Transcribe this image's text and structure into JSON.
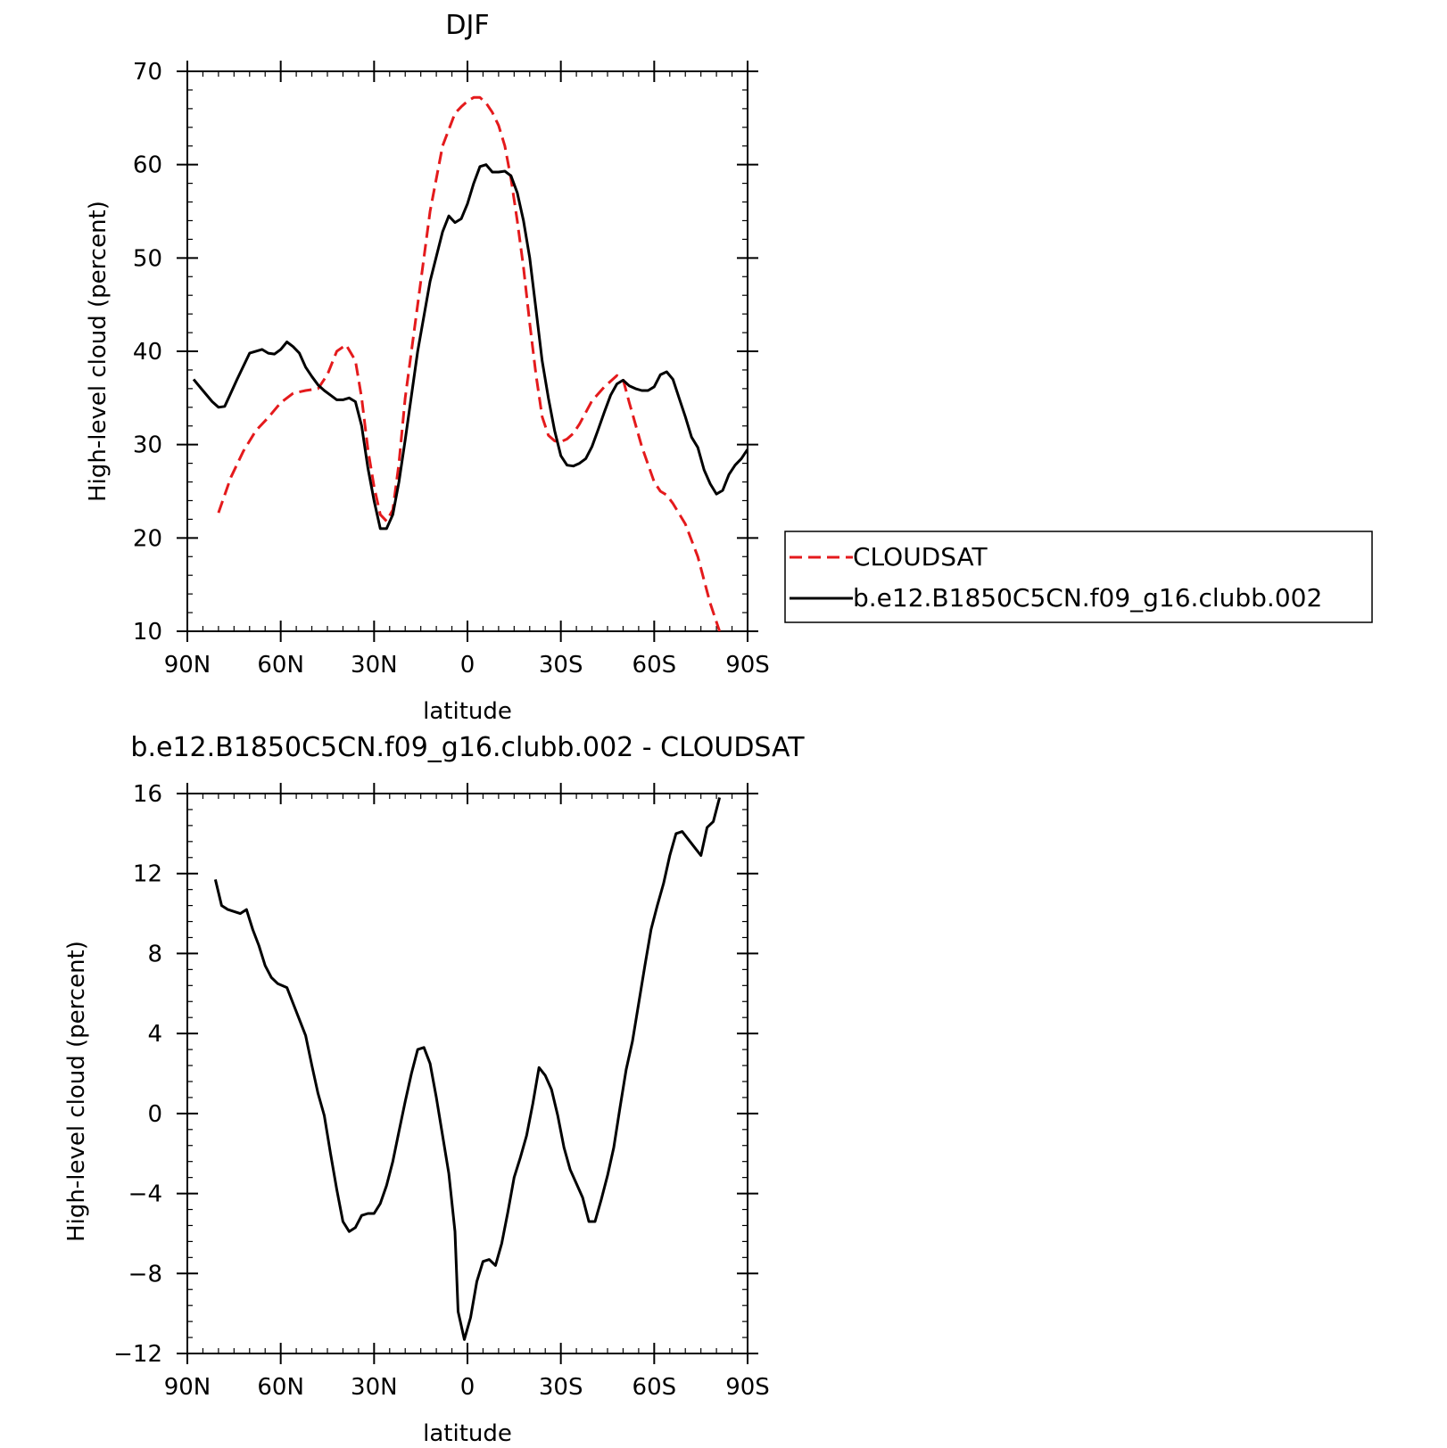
{
  "chart_data": [
    {
      "type": "line",
      "title": "DJF",
      "xlabel": "latitude",
      "ylabel": "High-level cloud (percent)",
      "xlim": [
        -90,
        90
      ],
      "ylim": [
        10,
        70
      ],
      "x_ticks": [
        -90,
        -60,
        -30,
        0,
        30,
        60,
        90
      ],
      "x_tick_labels": [
        "90N",
        "60N",
        "30N",
        "0",
        "30S",
        "60S",
        "90S"
      ],
      "y_ticks": [
        10,
        20,
        30,
        40,
        50,
        60,
        70
      ],
      "y_tick_labels": [
        "10",
        "20",
        "30",
        "40",
        "50",
        "60",
        "70"
      ],
      "legend": {
        "position": "right",
        "entries": [
          {
            "name": "CLOUDSAT",
            "color": "#e41a1c",
            "dash": true
          },
          {
            "name": "b.e12.B1850C5CN.f09_g16.clubb.002",
            "color": "#000000",
            "dash": false
          }
        ]
      },
      "series": [
        {
          "name": "CLOUDSAT",
          "color": "#e41a1c",
          "dashed": true,
          "x": [
            -80,
            -76,
            -72,
            -68,
            -64,
            -60,
            -56,
            -52,
            -48,
            -45,
            -42,
            -39,
            -36,
            -34,
            -32,
            -30,
            -28,
            -26,
            -24,
            -22,
            -20,
            -16,
            -12,
            -8,
            -4,
            -2,
            0,
            2,
            4,
            6,
            8,
            10,
            12,
            14,
            16,
            18,
            20,
            22,
            24,
            26,
            28,
            30,
            32,
            34,
            36,
            40,
            44,
            48,
            50,
            52,
            56,
            60,
            62,
            64,
            66,
            70,
            74,
            78,
            81
          ],
          "y": [
            22.7,
            26.5,
            29.3,
            31.5,
            32.9,
            34.5,
            35.5,
            35.8,
            36.0,
            37.5,
            40.0,
            40.7,
            39.0,
            35.0,
            29.5,
            25.5,
            22.5,
            21.8,
            23.0,
            28.0,
            35.0,
            45.0,
            55.0,
            62.0,
            65.5,
            66.2,
            66.8,
            67.2,
            67.2,
            66.6,
            65.6,
            64.2,
            62.0,
            58.5,
            54.0,
            49.0,
            43.0,
            37.5,
            33.0,
            31.0,
            30.4,
            30.3,
            30.6,
            31.2,
            32.2,
            34.7,
            36.2,
            37.4,
            37.0,
            34.5,
            29.8,
            26.0,
            25.0,
            24.6,
            23.7,
            21.5,
            18.0,
            13.0,
            10.0
          ]
        },
        {
          "name": "b.e12.B1850C5CN.f09_g16.clubb.002",
          "color": "#000000",
          "dashed": false,
          "x": [
            -88,
            -85,
            -82,
            -80,
            -78,
            -74,
            -70,
            -66,
            -64,
            -62,
            -60,
            -58,
            -56,
            -54,
            -52,
            -50,
            -48,
            -46,
            -44,
            -42,
            -40,
            -38,
            -36,
            -34,
            -32,
            -30,
            -28,
            -26,
            -24,
            -22,
            -20,
            -16,
            -12,
            -8,
            -6,
            -4,
            -2,
            0,
            2,
            4,
            6,
            8,
            10,
            12,
            14,
            16,
            18,
            20,
            22,
            24,
            26,
            28,
            30,
            32,
            34,
            36,
            38,
            40,
            42,
            44,
            46,
            48,
            50,
            52,
            54,
            56,
            58,
            60,
            62,
            64,
            66,
            68,
            70,
            72,
            74,
            76,
            78,
            80,
            82,
            84,
            86,
            88,
            90
          ],
          "y": [
            37.0,
            35.8,
            34.6,
            34.0,
            34.1,
            37.0,
            39.8,
            40.2,
            39.8,
            39.7,
            40.2,
            41.0,
            40.5,
            39.8,
            38.3,
            37.3,
            36.4,
            35.8,
            35.3,
            34.8,
            34.8,
            35.0,
            34.6,
            32.0,
            27.5,
            24.0,
            21.0,
            21.0,
            22.5,
            26.0,
            30.5,
            40.0,
            47.5,
            52.8,
            54.5,
            53.8,
            54.2,
            55.8,
            58.0,
            59.8,
            60.0,
            59.2,
            59.2,
            59.3,
            58.8,
            57.0,
            54.0,
            50.0,
            44.5,
            39.0,
            35.0,
            31.5,
            28.8,
            27.8,
            27.7,
            28.0,
            28.5,
            29.8,
            31.6,
            33.5,
            35.3,
            36.5,
            36.9,
            36.3,
            36.0,
            35.8,
            35.8,
            36.2,
            37.5,
            37.8,
            37.0,
            35.0,
            33.0,
            30.8,
            29.7,
            27.3,
            25.8,
            24.7,
            25.1,
            26.8,
            27.8,
            28.5,
            29.5
          ]
        }
      ]
    },
    {
      "type": "line",
      "title": "b.e12.B1850C5CN.f09_g16.clubb.002 - CLOUDSAT",
      "xlabel": "latitude",
      "ylabel": "High-level cloud (percent)",
      "xlim": [
        -90,
        90
      ],
      "ylim": [
        -12,
        16
      ],
      "x_ticks": [
        -90,
        -60,
        -30,
        0,
        30,
        60,
        90
      ],
      "x_tick_labels": [
        "90N",
        "60N",
        "30N",
        "0",
        "30S",
        "60S",
        "90S"
      ],
      "y_ticks": [
        -12,
        -8,
        -4,
        0,
        4,
        8,
        12,
        16
      ],
      "y_tick_labels": [
        "−12",
        "−8",
        "−4",
        "0",
        "4",
        "8",
        "12",
        "16"
      ],
      "series": [
        {
          "name": "b.e12.B1850C5CN.f09_g16.clubb.002 - CLOUDSAT",
          "color": "#000000",
          "dashed": false,
          "x": [
            -81,
            -79,
            -77,
            -75,
            -73,
            -71,
            -69,
            -67,
            -65,
            -63,
            -61,
            -58,
            -56,
            -54,
            -52,
            -50,
            -48,
            -46,
            -44,
            -42,
            -40,
            -38,
            -36,
            -34,
            -32,
            -30,
            -28,
            -26,
            -24,
            -22,
            -20,
            -18,
            -16,
            -14,
            -12,
            -10,
            -8,
            -6,
            -4,
            -3,
            -1,
            1,
            3,
            5,
            7,
            9,
            11,
            13,
            15,
            17,
            19,
            21,
            23,
            25,
            27,
            29,
            31,
            33,
            35,
            37,
            39,
            41,
            43,
            45,
            47,
            49,
            51,
            53,
            55,
            57,
            59,
            61,
            63,
            65,
            67,
            69,
            71,
            73,
            75,
            77,
            79,
            81
          ],
          "y": [
            11.7,
            10.4,
            10.2,
            10.1,
            10.0,
            10.2,
            9.2,
            8.4,
            7.4,
            6.8,
            6.5,
            6.3,
            5.5,
            4.7,
            3.9,
            2.4,
            1.0,
            -0.1,
            -2.0,
            -3.8,
            -5.4,
            -5.9,
            -5.7,
            -5.1,
            -5.0,
            -5.0,
            -4.5,
            -3.6,
            -2.4,
            -0.9,
            0.6,
            2.0,
            3.2,
            3.3,
            2.5,
            0.8,
            -1.1,
            -3.0,
            -5.9,
            -9.9,
            -11.3,
            -10.2,
            -8.4,
            -7.4,
            -7.3,
            -7.6,
            -6.5,
            -4.9,
            -3.2,
            -2.2,
            -1.1,
            0.5,
            2.3,
            1.9,
            1.2,
            -0.1,
            -1.7,
            -2.8,
            -3.5,
            -4.2,
            -5.4,
            -5.4,
            -4.3,
            -3.1,
            -1.7,
            0.3,
            2.2,
            3.6,
            5.5,
            7.4,
            9.2,
            10.4,
            11.5,
            12.9,
            14.0,
            14.1,
            13.7,
            13.3,
            12.9,
            14.3,
            14.6,
            15.8
          ]
        }
      ]
    }
  ]
}
